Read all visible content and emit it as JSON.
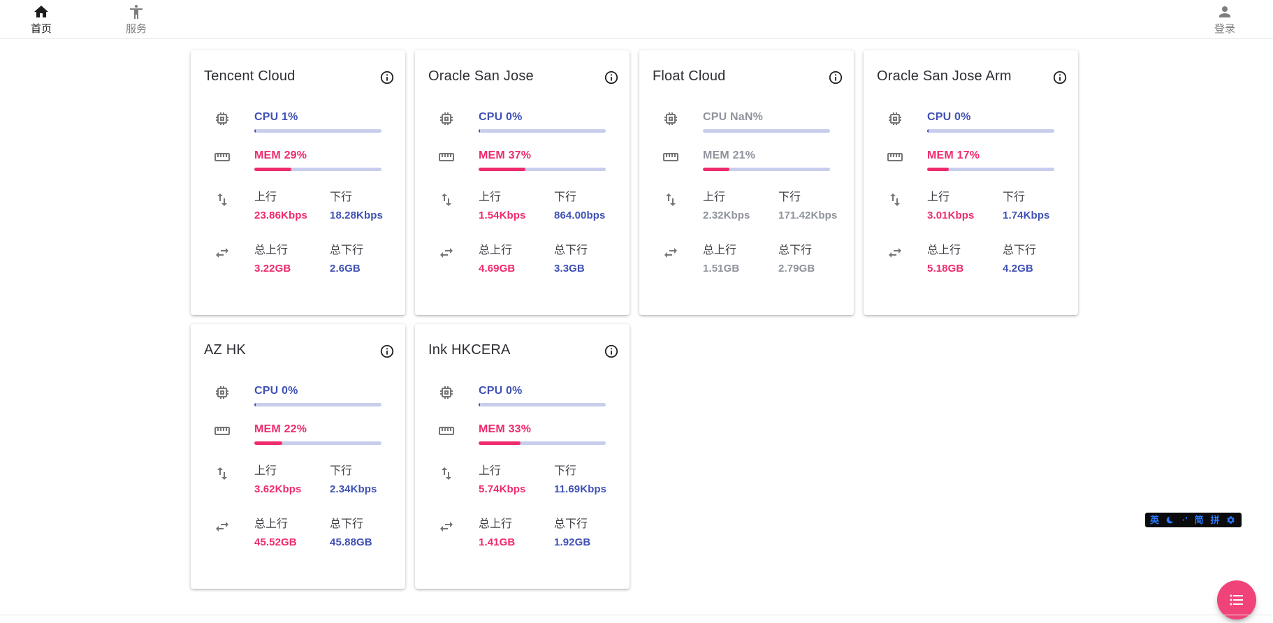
{
  "nav": {
    "items": [
      {
        "label": "首页",
        "icon": "home-icon",
        "active": true
      },
      {
        "label": "服务",
        "icon": "accessibility-icon",
        "active": false
      }
    ],
    "login": {
      "label": "登录",
      "icon": "person-icon"
    }
  },
  "card_labels": {
    "up": "上行",
    "down": "下行",
    "total_up": "总上行",
    "total_down": "总下行"
  },
  "servers": [
    {
      "name": "Tencent Cloud",
      "cpu_label": "CPU 1%",
      "cpu_percent": 1,
      "mem_label": "MEM 29%",
      "mem_percent": 29,
      "up": "23.86Kbps",
      "down": "18.28Kbps",
      "total_up": "3.22GB",
      "total_down": "2.6GB",
      "offline": false
    },
    {
      "name": "Oracle San Jose",
      "cpu_label": "CPU 0%",
      "cpu_percent": 0,
      "mem_label": "MEM 37%",
      "mem_percent": 37,
      "up": "1.54Kbps",
      "down": "864.00bps",
      "total_up": "4.69GB",
      "total_down": "3.3GB",
      "offline": false
    },
    {
      "name": "Float Cloud",
      "cpu_label": "CPU NaN%",
      "cpu_percent": null,
      "mem_label": "MEM 21%",
      "mem_percent": 21,
      "up": "2.32Kbps",
      "down": "171.42Kbps",
      "total_up": "1.51GB",
      "total_down": "2.79GB",
      "offline": true
    },
    {
      "name": "Oracle San Jose Arm",
      "cpu_label": "CPU 0%",
      "cpu_percent": 0,
      "mem_label": "MEM 17%",
      "mem_percent": 17,
      "up": "3.01Kbps",
      "down": "1.74Kbps",
      "total_up": "5.18GB",
      "total_down": "4.2GB",
      "offline": false
    },
    {
      "name": "AZ HK",
      "cpu_label": "CPU 0%",
      "cpu_percent": 0,
      "mem_label": "MEM 22%",
      "mem_percent": 22,
      "up": "3.62Kbps",
      "down": "2.34Kbps",
      "total_up": "45.52GB",
      "total_down": "45.88GB",
      "offline": false
    },
    {
      "name": "Ink HKCERA",
      "cpu_label": "CPU 0%",
      "cpu_percent": 0,
      "mem_label": "MEM 33%",
      "mem_percent": 33,
      "up": "5.74Kbps",
      "down": "11.69Kbps",
      "total_up": "1.41GB",
      "total_down": "1.92GB",
      "offline": false
    }
  ],
  "ime_toolbar": {
    "items": [
      {
        "glyph": "英",
        "name": "ime-language-indicator"
      },
      {
        "glyph": "",
        "name": "ime-halfwidth-moon-icon"
      },
      {
        "glyph": "·'",
        "name": "ime-punctuation-indicator"
      },
      {
        "glyph": "简",
        "name": "ime-simplified-indicator"
      },
      {
        "glyph": "拼",
        "name": "ime-pinyin-indicator"
      },
      {
        "glyph": "",
        "name": "ime-settings-gear-icon"
      }
    ]
  },
  "colors": {
    "accent_blue": "#3F51B5",
    "accent_pink": "#EE2B6C",
    "bar_track": "#C9CDEC",
    "offline_gray": "#8F939C",
    "fab_pink": "#F04379",
    "ime_blue": "#2979FF",
    "nav_active": "#1D1D1D",
    "nav_inactive": "#7E7E7E"
  }
}
